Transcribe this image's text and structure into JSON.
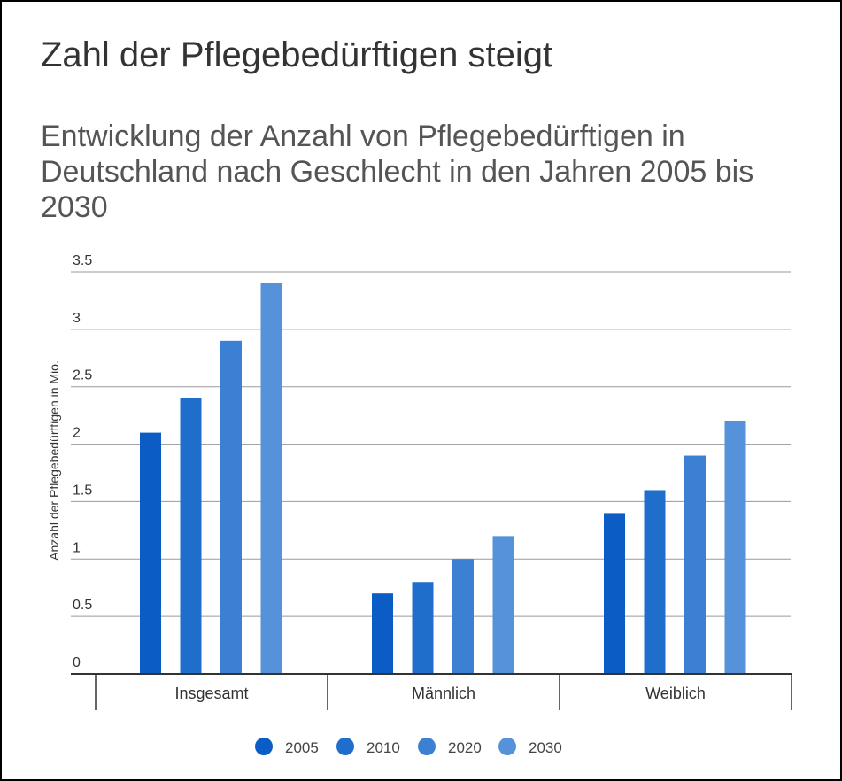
{
  "chart_data": {
    "type": "bar",
    "title": "Zahl der Pflegebedürftigen steigt",
    "subtitle": "Entwicklung der Anzahl von Pflegebedürftigen in Deutschland nach Geschlecht in den Jahren 2005 bis 2030",
    "xlabel": "",
    "ylabel": "Anzahl der Pflegebedürftigen in Mio.",
    "ylim": [
      0,
      3.5
    ],
    "yticks": [
      {
        "value": 0,
        "label": "0"
      },
      {
        "value": 0.5,
        "label": "0.5"
      },
      {
        "value": 1,
        "label": "1"
      },
      {
        "value": 1.5,
        "label": "1.5"
      },
      {
        "value": 2,
        "label": "2"
      },
      {
        "value": 2.5,
        "label": "2.5"
      },
      {
        "value": 3,
        "label": "3"
      },
      {
        "value": 3.5,
        "label": "3.5"
      }
    ],
    "grid": true,
    "legend": "bottom",
    "categories": [
      "Insgesamt",
      "Männlich",
      "Weiblich"
    ],
    "series": [
      {
        "name": "2005",
        "color": "#0b5cc4",
        "values": [
          2.1,
          0.7,
          1.4
        ]
      },
      {
        "name": "2010",
        "color": "#1f6ecb",
        "values": [
          2.4,
          0.8,
          1.6
        ]
      },
      {
        "name": "2020",
        "color": "#3b80d3",
        "values": [
          2.9,
          1.0,
          1.9
        ]
      },
      {
        "name": "2030",
        "color": "#5592d9",
        "values": [
          3.4,
          1.2,
          2.2
        ]
      }
    ]
  }
}
